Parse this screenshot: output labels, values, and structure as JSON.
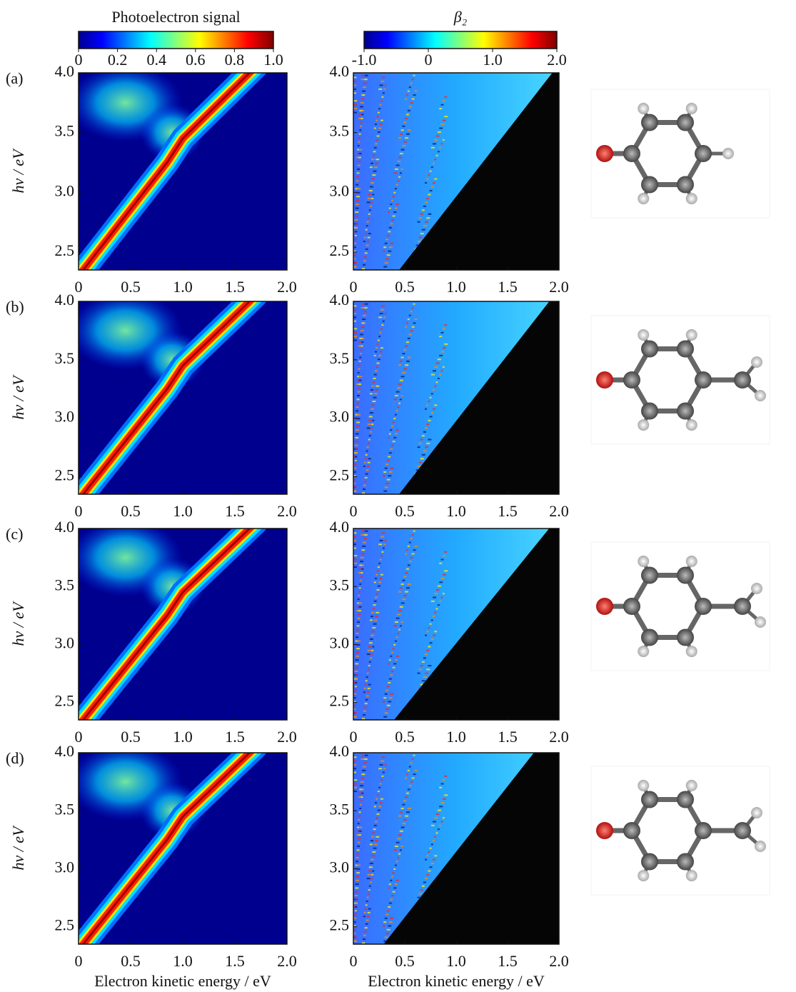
{
  "chart_data": [
    {
      "type": "heatmap",
      "panel_label": "(a)",
      "ylabel": "hν / eV",
      "xlim": [
        0,
        2
      ],
      "ylim": [
        2.35,
        4.0
      ],
      "xticks": [
        0,
        0.5,
        {
          "value": 1,
          "label": "1.0"
        },
        1.5,
        {
          "value": 2,
          "label": "2.0"
        }
      ],
      "yticks": [
        2.5,
        {
          "value": 3,
          "label": "3.0"
        },
        3.5,
        {
          "value": 4,
          "label": "4.0"
        }
      ],
      "colorbar": {
        "title": "Photoelectron signal",
        "lim": [
          0,
          1
        ],
        "ticks": [
          0,
          0.2,
          0.4,
          0.6,
          0.8,
          {
            "value": 1,
            "label": "1.0"
          }
        ]
      }
    },
    {
      "type": "heatmap",
      "xlim": [
        0,
        2
      ],
      "ylim": [
        2.35,
        4.0
      ],
      "xticks": [
        0,
        0.5,
        {
          "value": 1,
          "label": "1.0"
        },
        1.5,
        {
          "value": 2,
          "label": "2.0"
        }
      ],
      "yticks": [
        2.5,
        {
          "value": 3,
          "label": "3.0"
        },
        3.5,
        {
          "value": 4,
          "label": "4.0"
        }
      ],
      "colorbar": {
        "title": "β₂",
        "lim": [
          -1,
          2
        ],
        "ticks": [
          {
            "value": -1,
            "label": "-1.0"
          },
          0,
          {
            "value": 1,
            "label": "1.0"
          },
          {
            "value": 2,
            "label": "2.0"
          }
        ]
      }
    },
    {
      "type": "heatmap",
      "panel_label": "(b)",
      "ylabel": "hν / eV",
      "xlim": [
        0,
        2
      ],
      "ylim": [
        2.35,
        4.0
      ],
      "xticks": [
        0,
        0.5,
        {
          "value": 1,
          "label": "1.0"
        },
        1.5,
        {
          "value": 2,
          "label": "2.0"
        }
      ],
      "yticks": [
        2.5,
        {
          "value": 3,
          "label": "3.0"
        },
        3.5,
        {
          "value": 4,
          "label": "4.0"
        }
      ]
    },
    {
      "type": "heatmap",
      "xlim": [
        0,
        2
      ],
      "ylim": [
        2.35,
        4.0
      ],
      "xticks": [
        0,
        0.5,
        {
          "value": 1,
          "label": "1.0"
        },
        1.5,
        {
          "value": 2,
          "label": "2.0"
        }
      ],
      "yticks": [
        2.5,
        {
          "value": 3,
          "label": "3.0"
        },
        3.5,
        {
          "value": 4,
          "label": "4.0"
        }
      ]
    },
    {
      "type": "heatmap",
      "panel_label": "(c)",
      "ylabel": "hν / eV",
      "xlim": [
        0,
        2
      ],
      "ylim": [
        2.35,
        4.0
      ],
      "xticks": [
        0,
        0.5,
        {
          "value": 1,
          "label": "1.0"
        },
        1.5,
        {
          "value": 2,
          "label": "2.0"
        }
      ],
      "yticks": [
        2.5,
        {
          "value": 3,
          "label": "3.0"
        },
        3.5,
        {
          "value": 4,
          "label": "4.0"
        }
      ]
    },
    {
      "type": "heatmap",
      "xlim": [
        0,
        2
      ],
      "ylim": [
        2.35,
        4.0
      ],
      "xticks": [
        0,
        0.5,
        {
          "value": 1,
          "label": "1.0"
        },
        1.5,
        {
          "value": 2,
          "label": "2.0"
        }
      ],
      "yticks": [
        2.5,
        {
          "value": 3,
          "label": "3.0"
        },
        3.5,
        {
          "value": 4,
          "label": "4.0"
        }
      ]
    },
    {
      "type": "heatmap",
      "panel_label": "(d)",
      "ylabel": "hν / eV",
      "xlabel": "Electron kinetic energy / eV",
      "xlim": [
        0,
        2
      ],
      "ylim": [
        2.35,
        4.0
      ],
      "xticks": [
        0,
        0.5,
        {
          "value": 1,
          "label": "1.0"
        },
        1.5,
        {
          "value": 2,
          "label": "2.0"
        }
      ],
      "yticks": [
        2.5,
        {
          "value": 3,
          "label": "3.0"
        },
        3.5,
        {
          "value": 4,
          "label": "4.0"
        }
      ]
    },
    {
      "type": "heatmap",
      "xlabel": "Electron kinetic energy / eV",
      "xlim": [
        0,
        2
      ],
      "ylim": [
        2.35,
        4.0
      ],
      "xticks": [
        0,
        0.5,
        {
          "value": 1,
          "label": "1.0"
        },
        1.5,
        {
          "value": 2,
          "label": "2.0"
        }
      ],
      "yticks": [
        2.5,
        {
          "value": 3,
          "label": "3.0"
        },
        3.5,
        {
          "value": 4,
          "label": "4.0"
        }
      ]
    }
  ]
}
